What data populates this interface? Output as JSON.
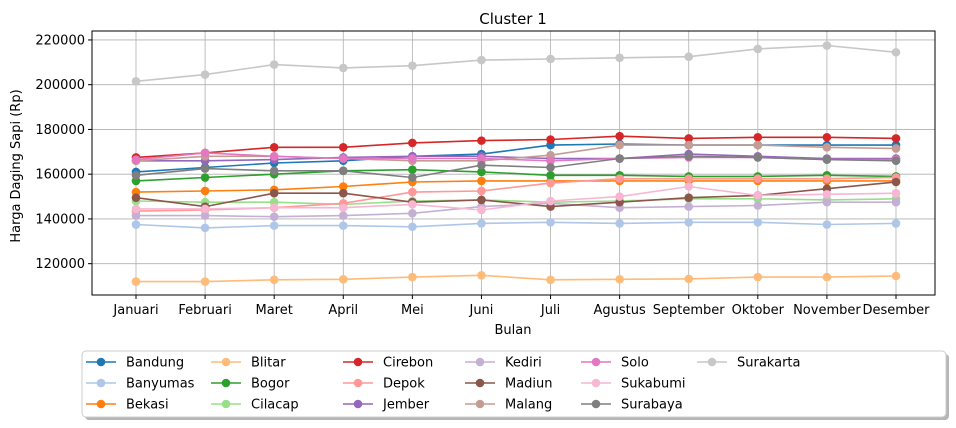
{
  "chart_data": {
    "type": "line",
    "title": "Cluster 1",
    "xlabel": "Bulan",
    "ylabel": "Harga Daging Sapi (Rp)",
    "ylim": [
      106000,
      224000
    ],
    "grid": true,
    "legend_position": "bottom",
    "categories": [
      "Januari",
      "Februari",
      "Maret",
      "April",
      "Mei",
      "Juni",
      "Juli",
      "Agustus",
      "September",
      "Oktober",
      "November",
      "Desember"
    ],
    "y_ticks": [
      {
        "value": 120000,
        "label": "120000"
      },
      {
        "value": 140000,
        "label": "140000"
      },
      {
        "value": 160000,
        "label": "160000"
      },
      {
        "value": 180000,
        "label": "180000"
      },
      {
        "value": 200000,
        "label": "200000"
      },
      {
        "value": 220000,
        "label": "220000"
      }
    ],
    "series": [
      {
        "name": "Bandung",
        "color": "#1f77b4",
        "values": [
          161000,
          163000,
          165000,
          166000,
          168000,
          169000,
          173000,
          173500,
          173000,
          173000,
          173000,
          173000
        ]
      },
      {
        "name": "Banyumas",
        "color": "#aec7e8",
        "values": [
          137500,
          136000,
          137000,
          137000,
          136500,
          138000,
          138500,
          138000,
          138500,
          138500,
          137500,
          138000
        ]
      },
      {
        "name": "Bekasi",
        "color": "#ff7f0e",
        "values": [
          152000,
          152500,
          153000,
          154500,
          156500,
          157000,
          157000,
          157000,
          157000,
          157000,
          157000,
          157000
        ]
      },
      {
        "name": "Blitar",
        "color": "#ffbb78",
        "values": [
          112000,
          112000,
          112800,
          113000,
          114000,
          114800,
          112800,
          113000,
          113200,
          114000,
          114000,
          114500
        ]
      },
      {
        "name": "Bogor",
        "color": "#2ca02c",
        "values": [
          157000,
          158500,
          160000,
          161500,
          162000,
          161000,
          159500,
          159500,
          159000,
          159000,
          159500,
          159000
        ]
      },
      {
        "name": "Cilacap",
        "color": "#98df8a",
        "values": [
          148000,
          147500,
          147500,
          146500,
          148000,
          148500,
          147500,
          148000,
          149000,
          149000,
          148500,
          149000
        ]
      },
      {
        "name": "Cirebon",
        "color": "#d62728",
        "values": [
          167500,
          169500,
          172000,
          172000,
          174000,
          175000,
          175500,
          177000,
          176000,
          176500,
          176500,
          176000
        ]
      },
      {
        "name": "Depok",
        "color": "#ff9896",
        "values": [
          143500,
          144000,
          145000,
          147000,
          152000,
          152500,
          156000,
          158000,
          158000,
          158000,
          158000,
          158500
        ]
      },
      {
        "name": "Jember",
        "color": "#9467bd",
        "values": [
          166000,
          166000,
          166500,
          167500,
          168000,
          168000,
          167000,
          167000,
          169000,
          168000,
          167000,
          167000
        ]
      },
      {
        "name": "Kediri",
        "color": "#c5b0d5",
        "values": [
          141500,
          141500,
          141000,
          141500,
          142500,
          145500,
          147000,
          145000,
          145500,
          146000,
          147500,
          147500
        ]
      },
      {
        "name": "Madiun",
        "color": "#8c564b",
        "values": [
          149500,
          145500,
          151500,
          151500,
          147500,
          148500,
          145500,
          147500,
          149500,
          150500,
          153500,
          156500
        ]
      },
      {
        "name": "Malang",
        "color": "#c49c94",
        "values": [
          166000,
          168000,
          168000,
          167000,
          166000,
          166000,
          168500,
          173000,
          173000,
          173000,
          172000,
          171500
        ]
      },
      {
        "name": "Solo",
        "color": "#e377c2",
        "values": [
          166500,
          169500,
          168000,
          167000,
          167000,
          167000,
          166000,
          167000,
          167500,
          167500,
          166500,
          166500
        ]
      },
      {
        "name": "Sukabumi",
        "color": "#f7b6d2",
        "values": [
          144500,
          144500,
          145000,
          145000,
          146500,
          144000,
          148000,
          150000,
          154500,
          150500,
          151000,
          151500
        ]
      },
      {
        "name": "Surabaya",
        "color": "#7f7f7f",
        "values": [
          159500,
          162500,
          161500,
          161500,
          158500,
          164000,
          163000,
          167000,
          168000,
          167500,
          166500,
          166000
        ]
      },
      {
        "name": "Surakarta",
        "color": "#c7c7c7",
        "values": [
          201500,
          204500,
          209000,
          207500,
          208500,
          211000,
          211500,
          212000,
          212500,
          216000,
          217500,
          214500
        ]
      }
    ]
  }
}
